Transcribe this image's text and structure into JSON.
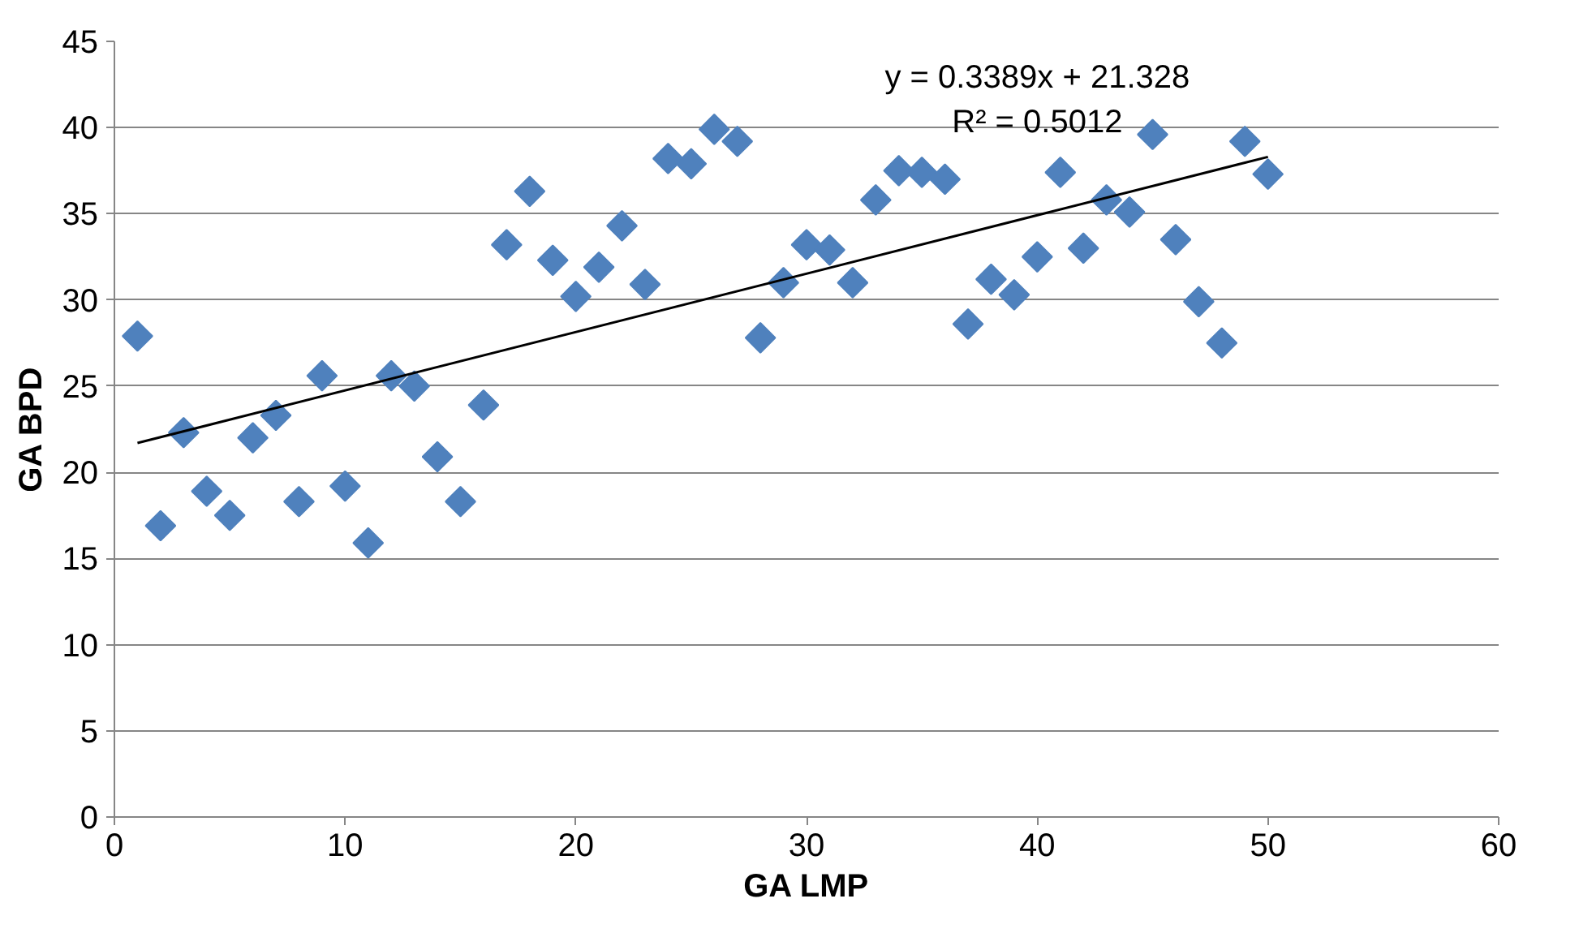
{
  "chart_data": {
    "type": "scatter",
    "xlabel": "GA LMP",
    "ylabel": "GA BPD",
    "xlim": [
      0,
      60
    ],
    "ylim": [
      0,
      45
    ],
    "xticks": [
      0,
      10,
      20,
      30,
      40,
      50,
      60
    ],
    "yticks": [
      0,
      5,
      10,
      15,
      20,
      25,
      30,
      35,
      40,
      45
    ],
    "grid": "y",
    "marker": "diamond",
    "annotations": [
      "y = 0.3389x + 21.328",
      "R² = 0.5012"
    ],
    "series": [
      {
        "color": "#4f81bd",
        "x": [
          1,
          2,
          3,
          4,
          5,
          6,
          7,
          8,
          9,
          10,
          11,
          12,
          13,
          14,
          15,
          16,
          17,
          18,
          19,
          20,
          21,
          22,
          23,
          24,
          25,
          26,
          27,
          28,
          29,
          30,
          31,
          32,
          33,
          34,
          35,
          36,
          37,
          38,
          39,
          40,
          41,
          42,
          43,
          44,
          45,
          46,
          47,
          48,
          49,
          50
        ],
        "values": [
          27.9,
          16.9,
          22.3,
          18.9,
          17.5,
          22.0,
          23.3,
          18.3,
          25.6,
          19.2,
          15.9,
          25.6,
          25.0,
          20.9,
          18.3,
          23.9,
          33.2,
          36.3,
          32.3,
          30.2,
          31.9,
          34.3,
          30.9,
          38.2,
          37.9,
          39.9,
          39.2,
          27.8,
          31.0,
          33.2,
          32.9,
          31.0,
          35.8,
          37.5,
          37.4,
          37.0,
          28.6,
          31.2,
          30.3,
          32.5,
          37.4,
          33.0,
          35.8,
          35.1,
          39.6,
          33.5,
          29.9,
          27.5,
          39.2,
          37.3
        ]
      },
      {
        "type": "line",
        "color": "#000000",
        "marker": "none",
        "x": [
          1,
          50
        ],
        "values": [
          21.7,
          38.3
        ]
      }
    ]
  }
}
